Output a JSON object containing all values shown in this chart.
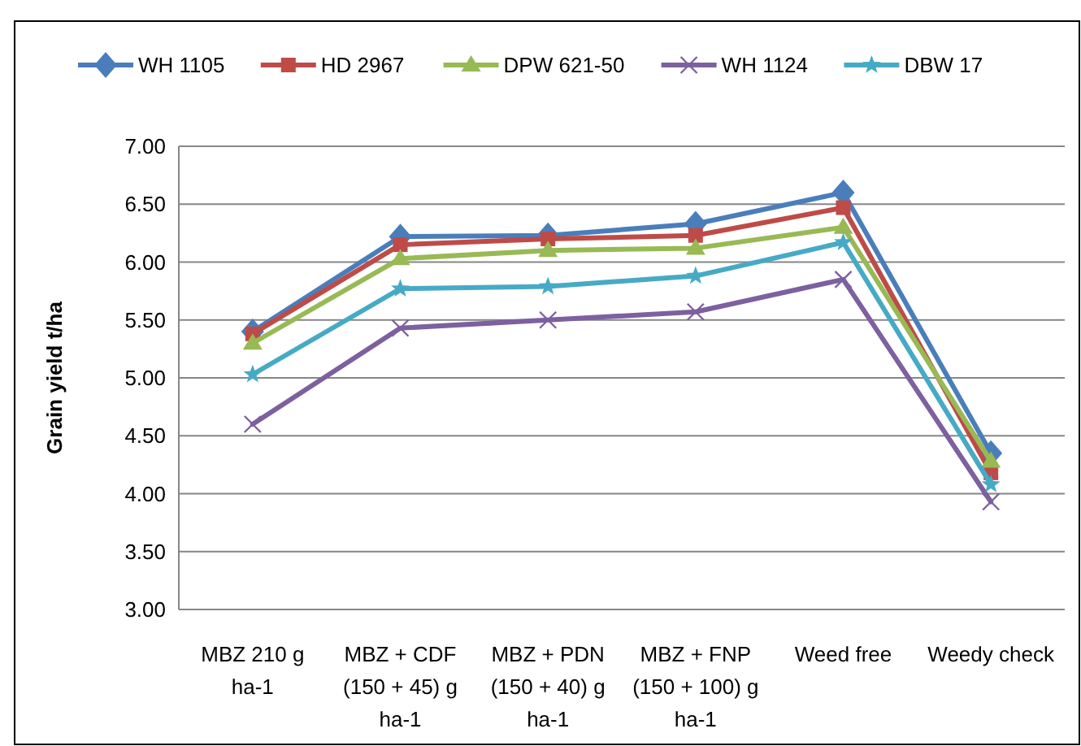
{
  "chart_data": {
    "type": "line",
    "ylabel": "Grain yield t/ha",
    "categories": [
      "MBZ 210 g ha-1",
      "MBZ + CDF (150 + 45) g ha-1",
      "MBZ + PDN (150 + 40) g ha-1",
      "MBZ + FNP (150 + 100) g ha-1",
      "Weed free",
      "Weedy check"
    ],
    "series": [
      {
        "name": "WH 1105",
        "color": "#4a7ebb",
        "marker": "diamond",
        "values": [
          5.4,
          6.22,
          6.23,
          6.33,
          6.6,
          4.35
        ]
      },
      {
        "name": "HD 2967",
        "color": "#be4b48",
        "marker": "square",
        "values": [
          5.38,
          6.15,
          6.2,
          6.23,
          6.47,
          4.18
        ]
      },
      {
        "name": "DPW 621-50",
        "color": "#98b954",
        "marker": "triangle",
        "values": [
          5.3,
          6.03,
          6.1,
          6.12,
          6.3,
          4.28
        ]
      },
      {
        "name": "WH 1124",
        "color": "#7d60a0",
        "marker": "cross",
        "values": [
          4.6,
          5.43,
          5.5,
          5.57,
          5.85,
          3.93
        ]
      },
      {
        "name": "DBW 17",
        "color": "#46aac5",
        "marker": "star",
        "values": [
          5.03,
          5.77,
          5.79,
          5.88,
          6.17,
          4.08
        ]
      }
    ],
    "ylim": [
      3,
      7
    ],
    "yticks": [
      {
        "value": 3,
        "label": "3.00"
      },
      {
        "value": 3.5,
        "label": "3.50"
      },
      {
        "value": 4,
        "label": "4.00"
      },
      {
        "value": 4.5,
        "label": "4.50"
      },
      {
        "value": 5,
        "label": "5.00"
      },
      {
        "value": 5.5,
        "label": "5.50"
      },
      {
        "value": 6,
        "label": "6.00"
      },
      {
        "value": 6.5,
        "label": "6.50"
      },
      {
        "value": 7,
        "label": "7.00"
      }
    ],
    "grid": "y",
    "legend": "top"
  }
}
